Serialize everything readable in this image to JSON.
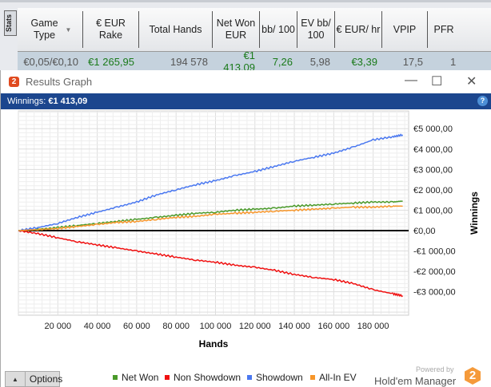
{
  "stats_tab": "Stats",
  "columns": [
    "Game Type",
    "€ EUR Rake",
    "Total Hands",
    "Net Won EUR",
    "bb/ 100",
    "EV bb/ 100",
    "€ EUR/ hr",
    "VPIP",
    "PFR"
  ],
  "row": [
    "€0,05/€0,10",
    "€1 265,95",
    "194 578",
    "€1 413,09",
    "7,26",
    "5,98",
    "€3,39",
    "17,5",
    "1"
  ],
  "window": {
    "title": "Results Graph",
    "winnings_label": "Winnings:",
    "winnings_value": "€1 413,09",
    "help": "?"
  },
  "footer": {
    "options": "Options",
    "powered_by": "Powered by",
    "brand": "Hold'em Manager",
    "brand_num": "2"
  },
  "colors": {
    "net_won": "#4a9a2a",
    "non_showdown": "#f01010",
    "showdown": "#4a78f0",
    "all_in_ev": "#f7962a"
  },
  "chart_data": {
    "type": "line",
    "xlabel": "Hands",
    "ylabel": "Winnings",
    "xlim": [
      0,
      198000
    ],
    "ylim": [
      -4150,
      5870
    ],
    "xticks": [
      20000,
      40000,
      60000,
      80000,
      100000,
      120000,
      140000,
      160000,
      180000
    ],
    "xtick_labels": [
      "20 000",
      "40 000",
      "60 000",
      "80 000",
      "100 000",
      "120 000",
      "140 000",
      "160 000",
      "180 000"
    ],
    "yticks": [
      5000,
      4000,
      3000,
      2000,
      1000,
      0,
      -1000,
      -2000,
      -3000
    ],
    "ytick_labels": [
      "€5 000,00",
      "€4 000,00",
      "€3 000,00",
      "€2 000,00",
      "€1 000,00",
      "€0,00",
      "-€1 000,00",
      "-€2 000,00",
      "-€3 000,00"
    ],
    "x": [
      0,
      10000,
      20000,
      30000,
      40000,
      50000,
      60000,
      70000,
      80000,
      90000,
      100000,
      110000,
      120000,
      130000,
      140000,
      150000,
      160000,
      170000,
      180000,
      190000,
      195000
    ],
    "series": [
      {
        "name": "Net Won",
        "key": "net_won",
        "values": [
          0,
          50,
          150,
          250,
          350,
          450,
          550,
          650,
          750,
          850,
          900,
          1000,
          1050,
          1100,
          1200,
          1250,
          1300,
          1350,
          1400,
          1400,
          1450
        ]
      },
      {
        "name": "Non Showdown",
        "key": "non_showdown",
        "values": [
          0,
          -150,
          -350,
          -550,
          -700,
          -850,
          -1000,
          -1150,
          -1300,
          -1450,
          -1550,
          -1700,
          -1800,
          -1950,
          -2150,
          -2300,
          -2400,
          -2600,
          -2900,
          -3100,
          -3200
        ]
      },
      {
        "name": "Showdown",
        "key": "showdown",
        "values": [
          0,
          150,
          350,
          650,
          900,
          1150,
          1400,
          1750,
          2000,
          2250,
          2450,
          2700,
          2900,
          3150,
          3400,
          3600,
          3800,
          4100,
          4450,
          4600,
          4700
        ]
      },
      {
        "name": "All-In EV",
        "key": "all_in_ev",
        "values": [
          0,
          50,
          100,
          200,
          300,
          400,
          450,
          550,
          650,
          700,
          800,
          850,
          900,
          950,
          1000,
          1050,
          1100,
          1150,
          1150,
          1200,
          1200
        ]
      }
    ]
  }
}
